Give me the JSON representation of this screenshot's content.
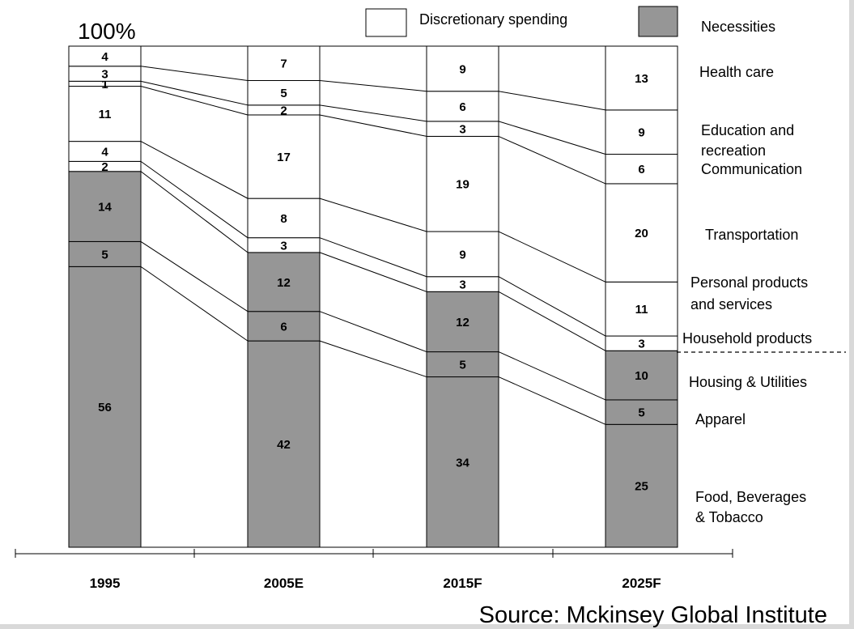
{
  "chart_data": {
    "type": "bar",
    "stacked": true,
    "normalized": true,
    "top_label": "100%",
    "categories": [
      "1995",
      "2005E",
      "2015F",
      "2025F"
    ],
    "series": [
      {
        "name": "Food, Beverages & Tobacco",
        "group": "Necessities",
        "values": [
          56,
          42,
          34,
          25
        ]
      },
      {
        "name": "Apparel",
        "group": "Necessities",
        "values": [
          5,
          6,
          5,
          5
        ]
      },
      {
        "name": "Housing & Utilities",
        "group": "Necessities",
        "values": [
          14,
          12,
          12,
          10
        ]
      },
      {
        "name": "Household products",
        "group": "Discretionary spending",
        "values": [
          2,
          3,
          3,
          3
        ]
      },
      {
        "name": "Personal products and services",
        "group": "Discretionary spending",
        "values": [
          4,
          8,
          9,
          11
        ]
      },
      {
        "name": "Transportation",
        "group": "Discretionary spending",
        "values": [
          11,
          17,
          19,
          20
        ]
      },
      {
        "name": "Communication",
        "group": "Discretionary spending",
        "values": [
          1,
          2,
          3,
          6
        ]
      },
      {
        "name": "Education and recreation",
        "group": "Discretionary spending",
        "values": [
          3,
          5,
          6,
          9
        ]
      },
      {
        "name": "Health care",
        "group": "Discretionary spending",
        "values": [
          4,
          7,
          9,
          13
        ]
      }
    ],
    "legend": [
      {
        "label": "Discretionary spending",
        "color": "#ffffff"
      },
      {
        "label": "Necessities",
        "color": "#969696"
      }
    ],
    "side_labels": [
      {
        "series": "Health care",
        "lines": [
          "Health care"
        ]
      },
      {
        "series": "Education and recreation",
        "lines": [
          "Education and",
          "recreation"
        ]
      },
      {
        "series": "Communication",
        "lines": [
          "Communication"
        ]
      },
      {
        "series": "Transportation",
        "lines": [
          "Transportation"
        ]
      },
      {
        "series": "Personal products and services",
        "lines": [
          "Personal products",
          " and services"
        ]
      },
      {
        "series": "Household products",
        "lines": [
          "Household products"
        ]
      },
      {
        "series": "Housing & Utilities",
        "lines": [
          "Housing & Utilities"
        ]
      },
      {
        "series": "Apparel",
        "lines": [
          "Apparel"
        ]
      },
      {
        "series": "Food, Beverages & Tobacco",
        "lines": [
          "Food, Beverages",
          "& Tobacco"
        ]
      }
    ],
    "source": "Source: Mckinsey Global Institute",
    "colors": {
      "necessities": "#969696",
      "discretionary": "#ffffff",
      "outline": "#000000"
    }
  }
}
